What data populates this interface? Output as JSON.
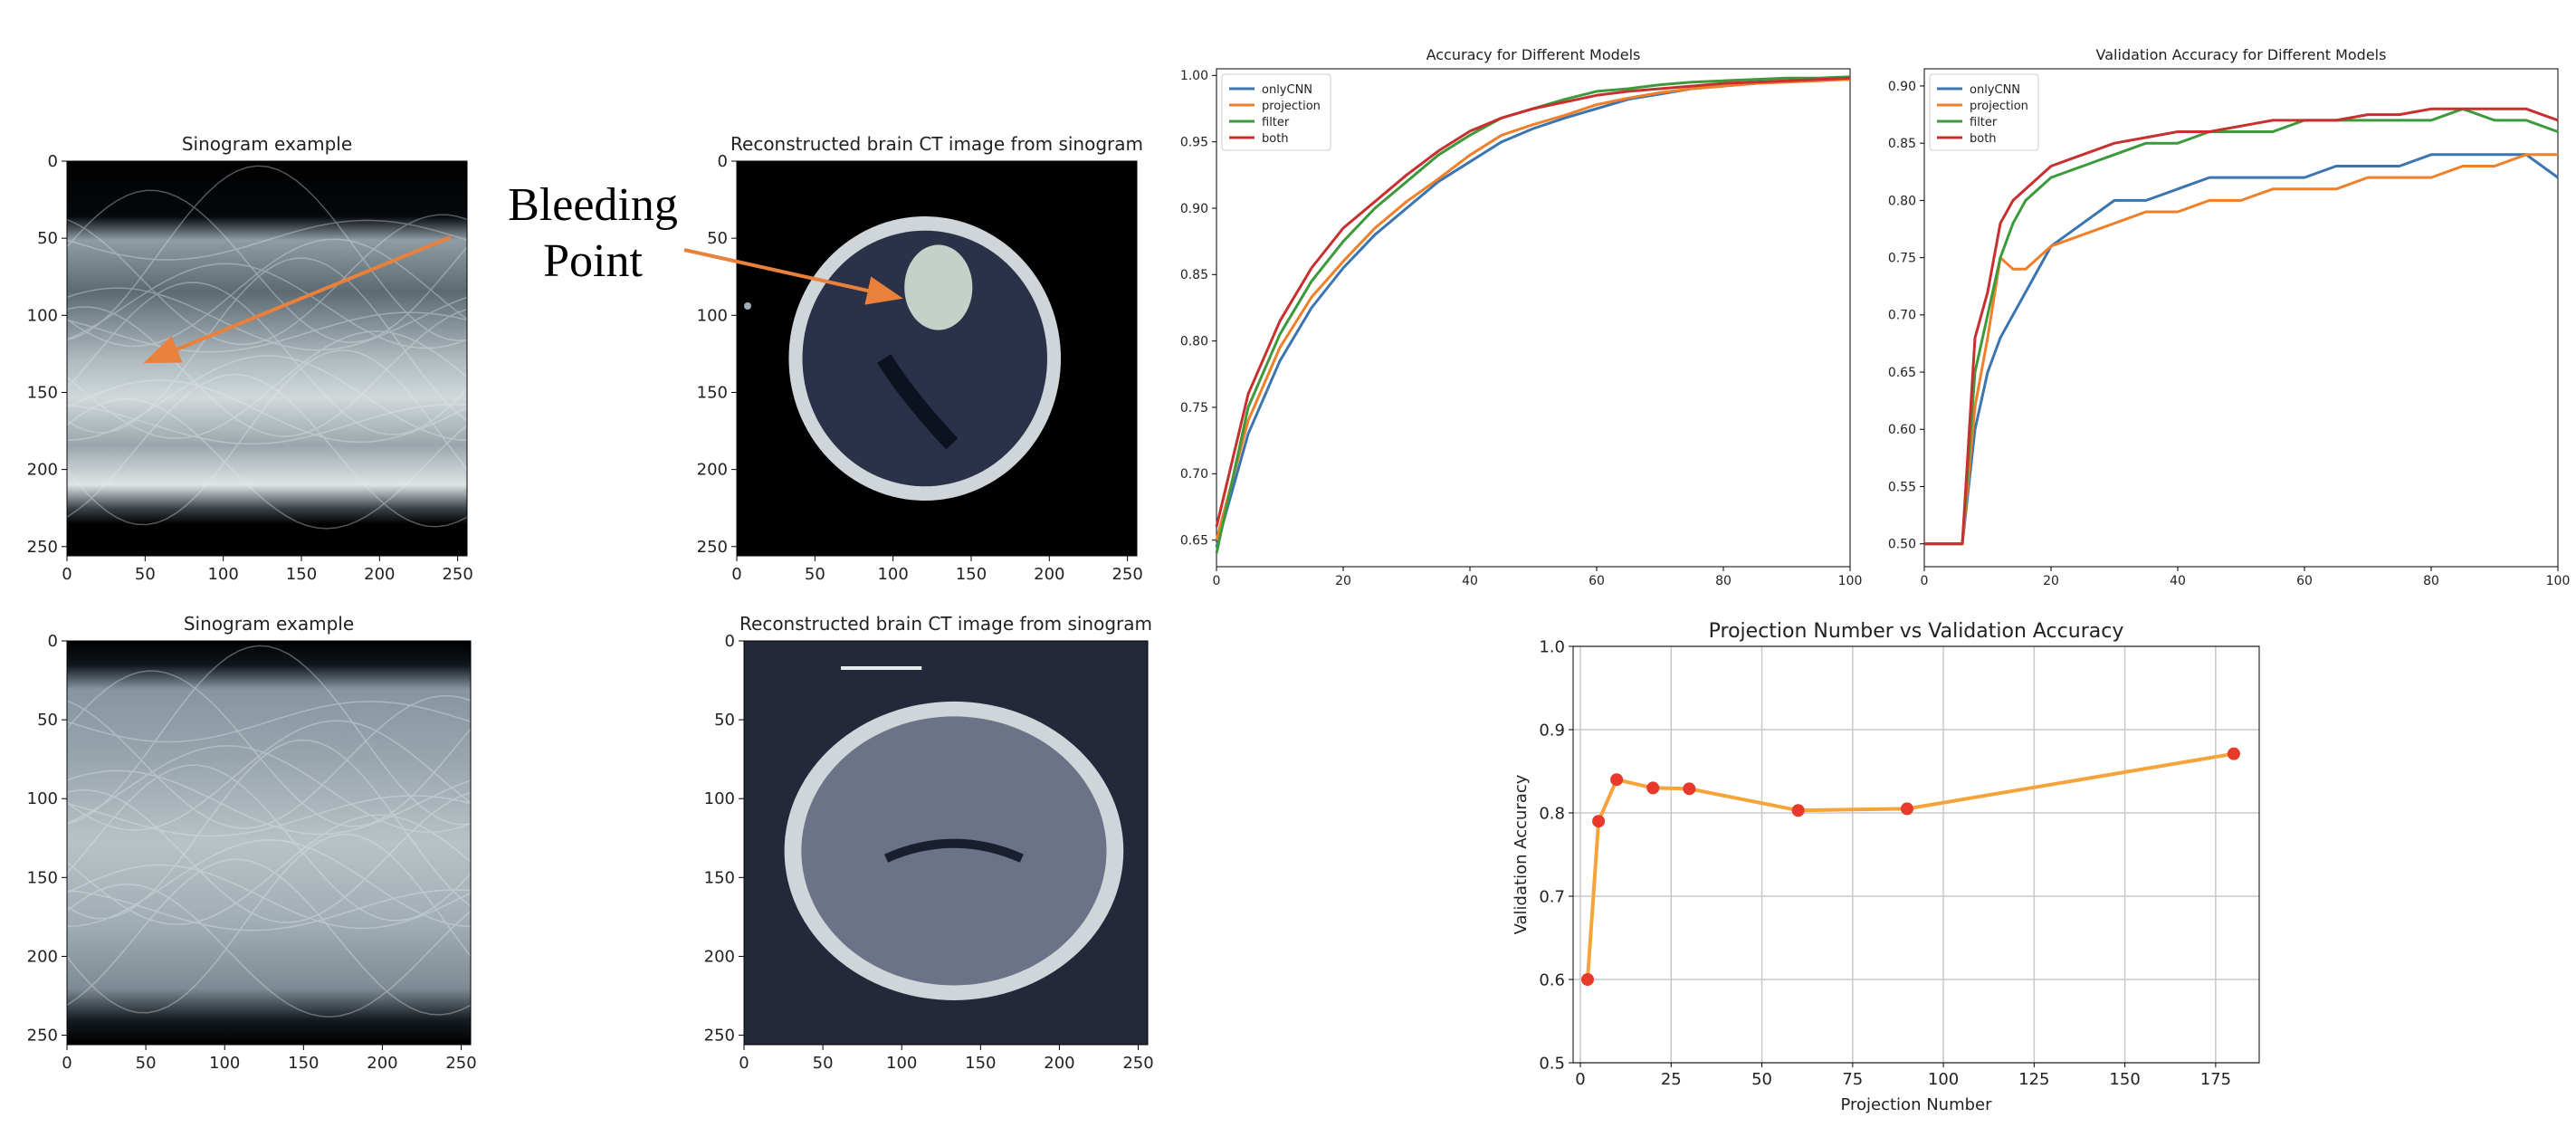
{
  "annotation": {
    "line1": "Bleeding",
    "line2": "Point"
  },
  "images": [
    {
      "title": "Sinogram example",
      "kind": "sinogram",
      "xticks": [
        "0",
        "50",
        "100",
        "150",
        "200",
        "250"
      ],
      "yticks": [
        "0",
        "50",
        "100",
        "150",
        "200",
        "250"
      ]
    },
    {
      "title": "Reconstructed brain CT image from sinogram",
      "kind": "ct",
      "xticks": [
        "0",
        "50",
        "100",
        "150",
        "200",
        "250"
      ],
      "yticks": [
        "0",
        "50",
        "100",
        "150",
        "200",
        "250"
      ]
    },
    {
      "title": "Sinogram example",
      "kind": "sinogram",
      "xticks": [
        "0",
        "50",
        "100",
        "150",
        "200",
        "250"
      ],
      "yticks": [
        "0",
        "50",
        "100",
        "150",
        "200",
        "250"
      ]
    },
    {
      "title": "Reconstructed brain CT image from sinogram",
      "kind": "ct",
      "xticks": [
        "0",
        "50",
        "100",
        "150",
        "200",
        "250"
      ],
      "yticks": [
        "0",
        "50",
        "100",
        "150",
        "200",
        "250"
      ]
    }
  ],
  "colors": {
    "onlyCNN": "#3a75b0",
    "projection": "#f07f2a",
    "filter": "#3c9a3c",
    "both": "#c7302f",
    "proj_line": "#f5a33a",
    "proj_marker": "#e8392a"
  },
  "chart_data": [
    {
      "type": "line",
      "title": "Accuracy for Different Models",
      "xlabel": "",
      "ylabel": "",
      "xlim": [
        0,
        100
      ],
      "ylim": [
        0.63,
        1.005
      ],
      "xticks": [
        0,
        20,
        40,
        60,
        80,
        100
      ],
      "yticks": [
        0.65,
        0.7,
        0.75,
        0.8,
        0.85,
        0.9,
        0.95,
        1.0
      ],
      "ytick_labels": [
        "0.65",
        "0.70",
        "0.75",
        "0.80",
        "0.85",
        "0.90",
        "0.95",
        "1.00"
      ],
      "legend_position": "top-left",
      "grid": false,
      "series": [
        {
          "name": "onlyCNN",
          "points": [
            [
              0,
              0.645
            ],
            [
              5,
              0.73
            ],
            [
              10,
              0.785
            ],
            [
              15,
              0.825
            ],
            [
              20,
              0.855
            ],
            [
              25,
              0.88
            ],
            [
              30,
              0.9
            ],
            [
              35,
              0.92
            ],
            [
              40,
              0.935
            ],
            [
              45,
              0.95
            ],
            [
              50,
              0.96
            ],
            [
              55,
              0.968
            ],
            [
              60,
              0.975
            ],
            [
              65,
              0.982
            ],
            [
              70,
              0.986
            ],
            [
              75,
              0.99
            ],
            [
              80,
              0.992
            ],
            [
              85,
              0.994
            ],
            [
              90,
              0.996
            ],
            [
              95,
              0.997
            ],
            [
              100,
              0.998
            ]
          ]
        },
        {
          "name": "projection",
          "points": [
            [
              0,
              0.65
            ],
            [
              5,
              0.74
            ],
            [
              10,
              0.795
            ],
            [
              15,
              0.833
            ],
            [
              20,
              0.86
            ],
            [
              25,
              0.885
            ],
            [
              30,
              0.905
            ],
            [
              35,
              0.922
            ],
            [
              40,
              0.94
            ],
            [
              45,
              0.955
            ],
            [
              50,
              0.963
            ],
            [
              55,
              0.97
            ],
            [
              60,
              0.978
            ],
            [
              65,
              0.983
            ],
            [
              70,
              0.987
            ],
            [
              75,
              0.99
            ],
            [
              80,
              0.992
            ],
            [
              85,
              0.994
            ],
            [
              90,
              0.995
            ],
            [
              95,
              0.996
            ],
            [
              100,
              0.997
            ]
          ]
        },
        {
          "name": "filter",
          "points": [
            [
              0,
              0.64
            ],
            [
              5,
              0.75
            ],
            [
              10,
              0.805
            ],
            [
              15,
              0.845
            ],
            [
              20,
              0.875
            ],
            [
              25,
              0.9
            ],
            [
              30,
              0.92
            ],
            [
              35,
              0.94
            ],
            [
              40,
              0.955
            ],
            [
              45,
              0.968
            ],
            [
              50,
              0.975
            ],
            [
              55,
              0.982
            ],
            [
              60,
              0.988
            ],
            [
              65,
              0.99
            ],
            [
              70,
              0.993
            ],
            [
              75,
              0.995
            ],
            [
              80,
              0.996
            ],
            [
              85,
              0.997
            ],
            [
              90,
              0.998
            ],
            [
              95,
              0.998
            ],
            [
              100,
              0.999
            ]
          ]
        },
        {
          "name": "both",
          "points": [
            [
              0,
              0.66
            ],
            [
              5,
              0.76
            ],
            [
              10,
              0.815
            ],
            [
              15,
              0.855
            ],
            [
              20,
              0.885
            ],
            [
              25,
              0.905
            ],
            [
              30,
              0.925
            ],
            [
              35,
              0.943
            ],
            [
              40,
              0.958
            ],
            [
              45,
              0.968
            ],
            [
              50,
              0.975
            ],
            [
              55,
              0.98
            ],
            [
              60,
              0.985
            ],
            [
              65,
              0.988
            ],
            [
              70,
              0.99
            ],
            [
              75,
              0.992
            ],
            [
              80,
              0.994
            ],
            [
              85,
              0.995
            ],
            [
              90,
              0.996
            ],
            [
              95,
              0.997
            ],
            [
              100,
              0.998
            ]
          ]
        }
      ]
    },
    {
      "type": "line",
      "title": "Validation Accuracy for Different Models",
      "xlabel": "",
      "ylabel": "",
      "xlim": [
        0,
        100
      ],
      "ylim": [
        0.48,
        0.915
      ],
      "xticks": [
        0,
        20,
        40,
        60,
        80,
        100
      ],
      "yticks": [
        0.5,
        0.55,
        0.6,
        0.65,
        0.7,
        0.75,
        0.8,
        0.85,
        0.9
      ],
      "ytick_labels": [
        "0.50",
        "0.55",
        "0.60",
        "0.65",
        "0.70",
        "0.75",
        "0.80",
        "0.85",
        "0.90"
      ],
      "legend_position": "top-left",
      "grid": false,
      "series": [
        {
          "name": "onlyCNN",
          "points": [
            [
              0,
              0.5
            ],
            [
              3,
              0.5
            ],
            [
              6,
              0.5
            ],
            [
              8,
              0.6
            ],
            [
              10,
              0.65
            ],
            [
              12,
              0.68
            ],
            [
              14,
              0.7
            ],
            [
              16,
              0.72
            ],
            [
              20,
              0.76
            ],
            [
              25,
              0.78
            ],
            [
              30,
              0.8
            ],
            [
              35,
              0.8
            ],
            [
              40,
              0.81
            ],
            [
              45,
              0.82
            ],
            [
              50,
              0.82
            ],
            [
              55,
              0.82
            ],
            [
              60,
              0.82
            ],
            [
              65,
              0.83
            ],
            [
              70,
              0.83
            ],
            [
              75,
              0.83
            ],
            [
              80,
              0.84
            ],
            [
              85,
              0.84
            ],
            [
              90,
              0.84
            ],
            [
              95,
              0.84
            ],
            [
              100,
              0.82
            ]
          ]
        },
        {
          "name": "projection",
          "points": [
            [
              0,
              0.5
            ],
            [
              3,
              0.5
            ],
            [
              6,
              0.5
            ],
            [
              8,
              0.62
            ],
            [
              10,
              0.68
            ],
            [
              12,
              0.75
            ],
            [
              14,
              0.74
            ],
            [
              16,
              0.74
            ],
            [
              20,
              0.76
            ],
            [
              25,
              0.77
            ],
            [
              30,
              0.78
            ],
            [
              35,
              0.79
            ],
            [
              40,
              0.79
            ],
            [
              45,
              0.8
            ],
            [
              50,
              0.8
            ],
            [
              55,
              0.81
            ],
            [
              60,
              0.81
            ],
            [
              65,
              0.81
            ],
            [
              70,
              0.82
            ],
            [
              75,
              0.82
            ],
            [
              80,
              0.82
            ],
            [
              85,
              0.83
            ],
            [
              90,
              0.83
            ],
            [
              95,
              0.84
            ],
            [
              100,
              0.84
            ]
          ]
        },
        {
          "name": "filter",
          "points": [
            [
              0,
              0.5
            ],
            [
              3,
              0.5
            ],
            [
              6,
              0.5
            ],
            [
              8,
              0.65
            ],
            [
              10,
              0.7
            ],
            [
              12,
              0.75
            ],
            [
              14,
              0.78
            ],
            [
              16,
              0.8
            ],
            [
              20,
              0.82
            ],
            [
              25,
              0.83
            ],
            [
              30,
              0.84
            ],
            [
              35,
              0.85
            ],
            [
              40,
              0.85
            ],
            [
              45,
              0.86
            ],
            [
              50,
              0.86
            ],
            [
              55,
              0.86
            ],
            [
              60,
              0.87
            ],
            [
              65,
              0.87
            ],
            [
              70,
              0.87
            ],
            [
              75,
              0.87
            ],
            [
              80,
              0.87
            ],
            [
              85,
              0.88
            ],
            [
              90,
              0.87
            ],
            [
              95,
              0.87
            ],
            [
              100,
              0.86
            ]
          ]
        },
        {
          "name": "both",
          "points": [
            [
              0,
              0.5
            ],
            [
              3,
              0.5
            ],
            [
              6,
              0.5
            ],
            [
              8,
              0.68
            ],
            [
              10,
              0.72
            ],
            [
              12,
              0.78
            ],
            [
              14,
              0.8
            ],
            [
              16,
              0.81
            ],
            [
              20,
              0.83
            ],
            [
              25,
              0.84
            ],
            [
              30,
              0.85
            ],
            [
              35,
              0.855
            ],
            [
              40,
              0.86
            ],
            [
              45,
              0.86
            ],
            [
              50,
              0.865
            ],
            [
              55,
              0.87
            ],
            [
              60,
              0.87
            ],
            [
              65,
              0.87
            ],
            [
              70,
              0.875
            ],
            [
              75,
              0.875
            ],
            [
              80,
              0.88
            ],
            [
              85,
              0.88
            ],
            [
              90,
              0.88
            ],
            [
              95,
              0.88
            ],
            [
              100,
              0.87
            ]
          ]
        }
      ]
    },
    {
      "type": "line",
      "title": "Projection Number vs Validation Accuracy",
      "xlabel": "Projection Number",
      "ylabel": "Validation Accuracy",
      "xlim": [
        -2,
        187
      ],
      "ylim": [
        0.5,
        1.0
      ],
      "xticks": [
        0,
        25,
        50,
        75,
        100,
        125,
        150,
        175
      ],
      "yticks": [
        0.5,
        0.6,
        0.7,
        0.8,
        0.9,
        1.0
      ],
      "ytick_labels": [
        "0.5",
        "0.6",
        "0.7",
        "0.8",
        "0.9",
        "1.0"
      ],
      "grid": true,
      "series": [
        {
          "name": "",
          "x": [
            2,
            5,
            10,
            20,
            30,
            60,
            90,
            180
          ],
          "y": [
            0.6,
            0.79,
            0.84,
            0.83,
            0.829,
            0.803,
            0.805,
            0.871
          ]
        }
      ]
    }
  ]
}
